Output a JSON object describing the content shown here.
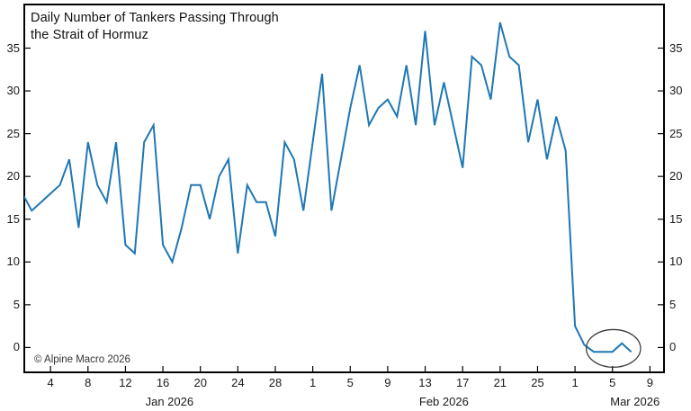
{
  "title": {
    "line1": "Daily Number of Tankers Passing Through",
    "line2": "the Strait of Hormuz"
  },
  "copyright": "© Alpine Macro 2026",
  "colors": {
    "line": "#1f77b4",
    "frame": "#000000",
    "tick": "#000000",
    "text": "#1a1a1a",
    "ellipse": "#404040"
  },
  "axes": {
    "yticks": [
      0,
      5,
      10,
      15,
      20,
      25,
      30,
      35
    ],
    "ylim": [
      -2.9,
      40.1
    ],
    "xlim_days": [
      1.2,
      69.5
    ],
    "xticks": [
      {
        "label": "4",
        "day": 4
      },
      {
        "label": "8",
        "day": 8
      },
      {
        "label": "12",
        "day": 12
      },
      {
        "label": "16",
        "day": 16
      },
      {
        "label": "20",
        "day": 20
      },
      {
        "label": "24",
        "day": 24
      },
      {
        "label": "28",
        "day": 28
      },
      {
        "label": "1",
        "day": 32
      },
      {
        "label": "5",
        "day": 36
      },
      {
        "label": "9",
        "day": 40
      },
      {
        "label": "13",
        "day": 44
      },
      {
        "label": "17",
        "day": 48
      },
      {
        "label": "21",
        "day": 52
      },
      {
        "label": "25",
        "day": 56
      },
      {
        "label": "1",
        "day": 60
      },
      {
        "label": "5",
        "day": 64
      },
      {
        "label": "9",
        "day": 68
      }
    ],
    "months": [
      {
        "label": "Jan 2026",
        "center_day": 16.7
      },
      {
        "label": "Feb 2026",
        "center_day": 46.0
      },
      {
        "label": "Mar 2026",
        "center_day": 66.4
      }
    ]
  },
  "chart_data": {
    "type": "line",
    "title": "Daily Number of Tankers Passing Through the Strait of Hormuz",
    "xlabel": "",
    "ylabel": "",
    "ylim": [
      -2.9,
      40.1
    ],
    "grid": false,
    "legend": false,
    "series": [
      {
        "name": "Daily number of tankers",
        "dates": [
          "Jan 1",
          "Jan 2",
          "Jan 3",
          "Jan 4",
          "Jan 5",
          "Jan 6",
          "Jan 7",
          "Jan 8",
          "Jan 9",
          "Jan 10",
          "Jan 11",
          "Jan 12",
          "Jan 13",
          "Jan 14",
          "Jan 15",
          "Jan 16",
          "Jan 17",
          "Jan 18",
          "Jan 19",
          "Jan 20",
          "Jan 21",
          "Jan 22",
          "Jan 23",
          "Jan 24",
          "Jan 25",
          "Jan 26",
          "Jan 27",
          "Jan 28",
          "Jan 29",
          "Jan 30",
          "Jan 31",
          "Feb 1",
          "Feb 2",
          "Feb 3",
          "Feb 4",
          "Feb 5",
          "Feb 6",
          "Feb 7",
          "Feb 8",
          "Feb 9",
          "Feb 10",
          "Feb 11",
          "Feb 12",
          "Feb 13",
          "Feb 14",
          "Feb 15",
          "Feb 16",
          "Feb 17",
          "Feb 18",
          "Feb 19",
          "Feb 20",
          "Feb 21",
          "Feb 22",
          "Feb 23",
          "Feb 24",
          "Feb 25",
          "Feb 26",
          "Feb 27",
          "Feb 28",
          "Mar 1",
          "Mar 2",
          "Mar 3",
          "Mar 4",
          "Mar 5",
          "Mar 6",
          "Mar 7"
        ],
        "start_day": 1,
        "values": [
          18,
          16,
          17,
          18,
          19,
          22,
          14,
          24,
          19,
          17,
          24,
          12,
          11,
          24,
          26,
          12,
          10,
          14,
          19,
          19,
          15,
          20,
          22,
          11,
          19,
          17,
          17,
          13,
          24,
          22,
          16,
          24,
          32,
          16,
          22,
          28,
          33,
          26,
          28,
          29,
          27,
          33,
          26,
          37,
          26,
          31,
          26,
          21,
          34,
          33,
          29,
          38,
          34,
          33,
          24,
          29,
          22,
          27,
          23,
          2.5,
          0.3,
          -0.5,
          -0.5,
          -0.5,
          0.5,
          -0.5
        ]
      }
    ],
    "annotation": {
      "shape": "ellipse",
      "around": "Mar 2 - Mar 7 near-zero values",
      "center_day": 64.1,
      "center_value": -0.1,
      "radius_days": 2.9,
      "radius_value": 2.2
    }
  }
}
